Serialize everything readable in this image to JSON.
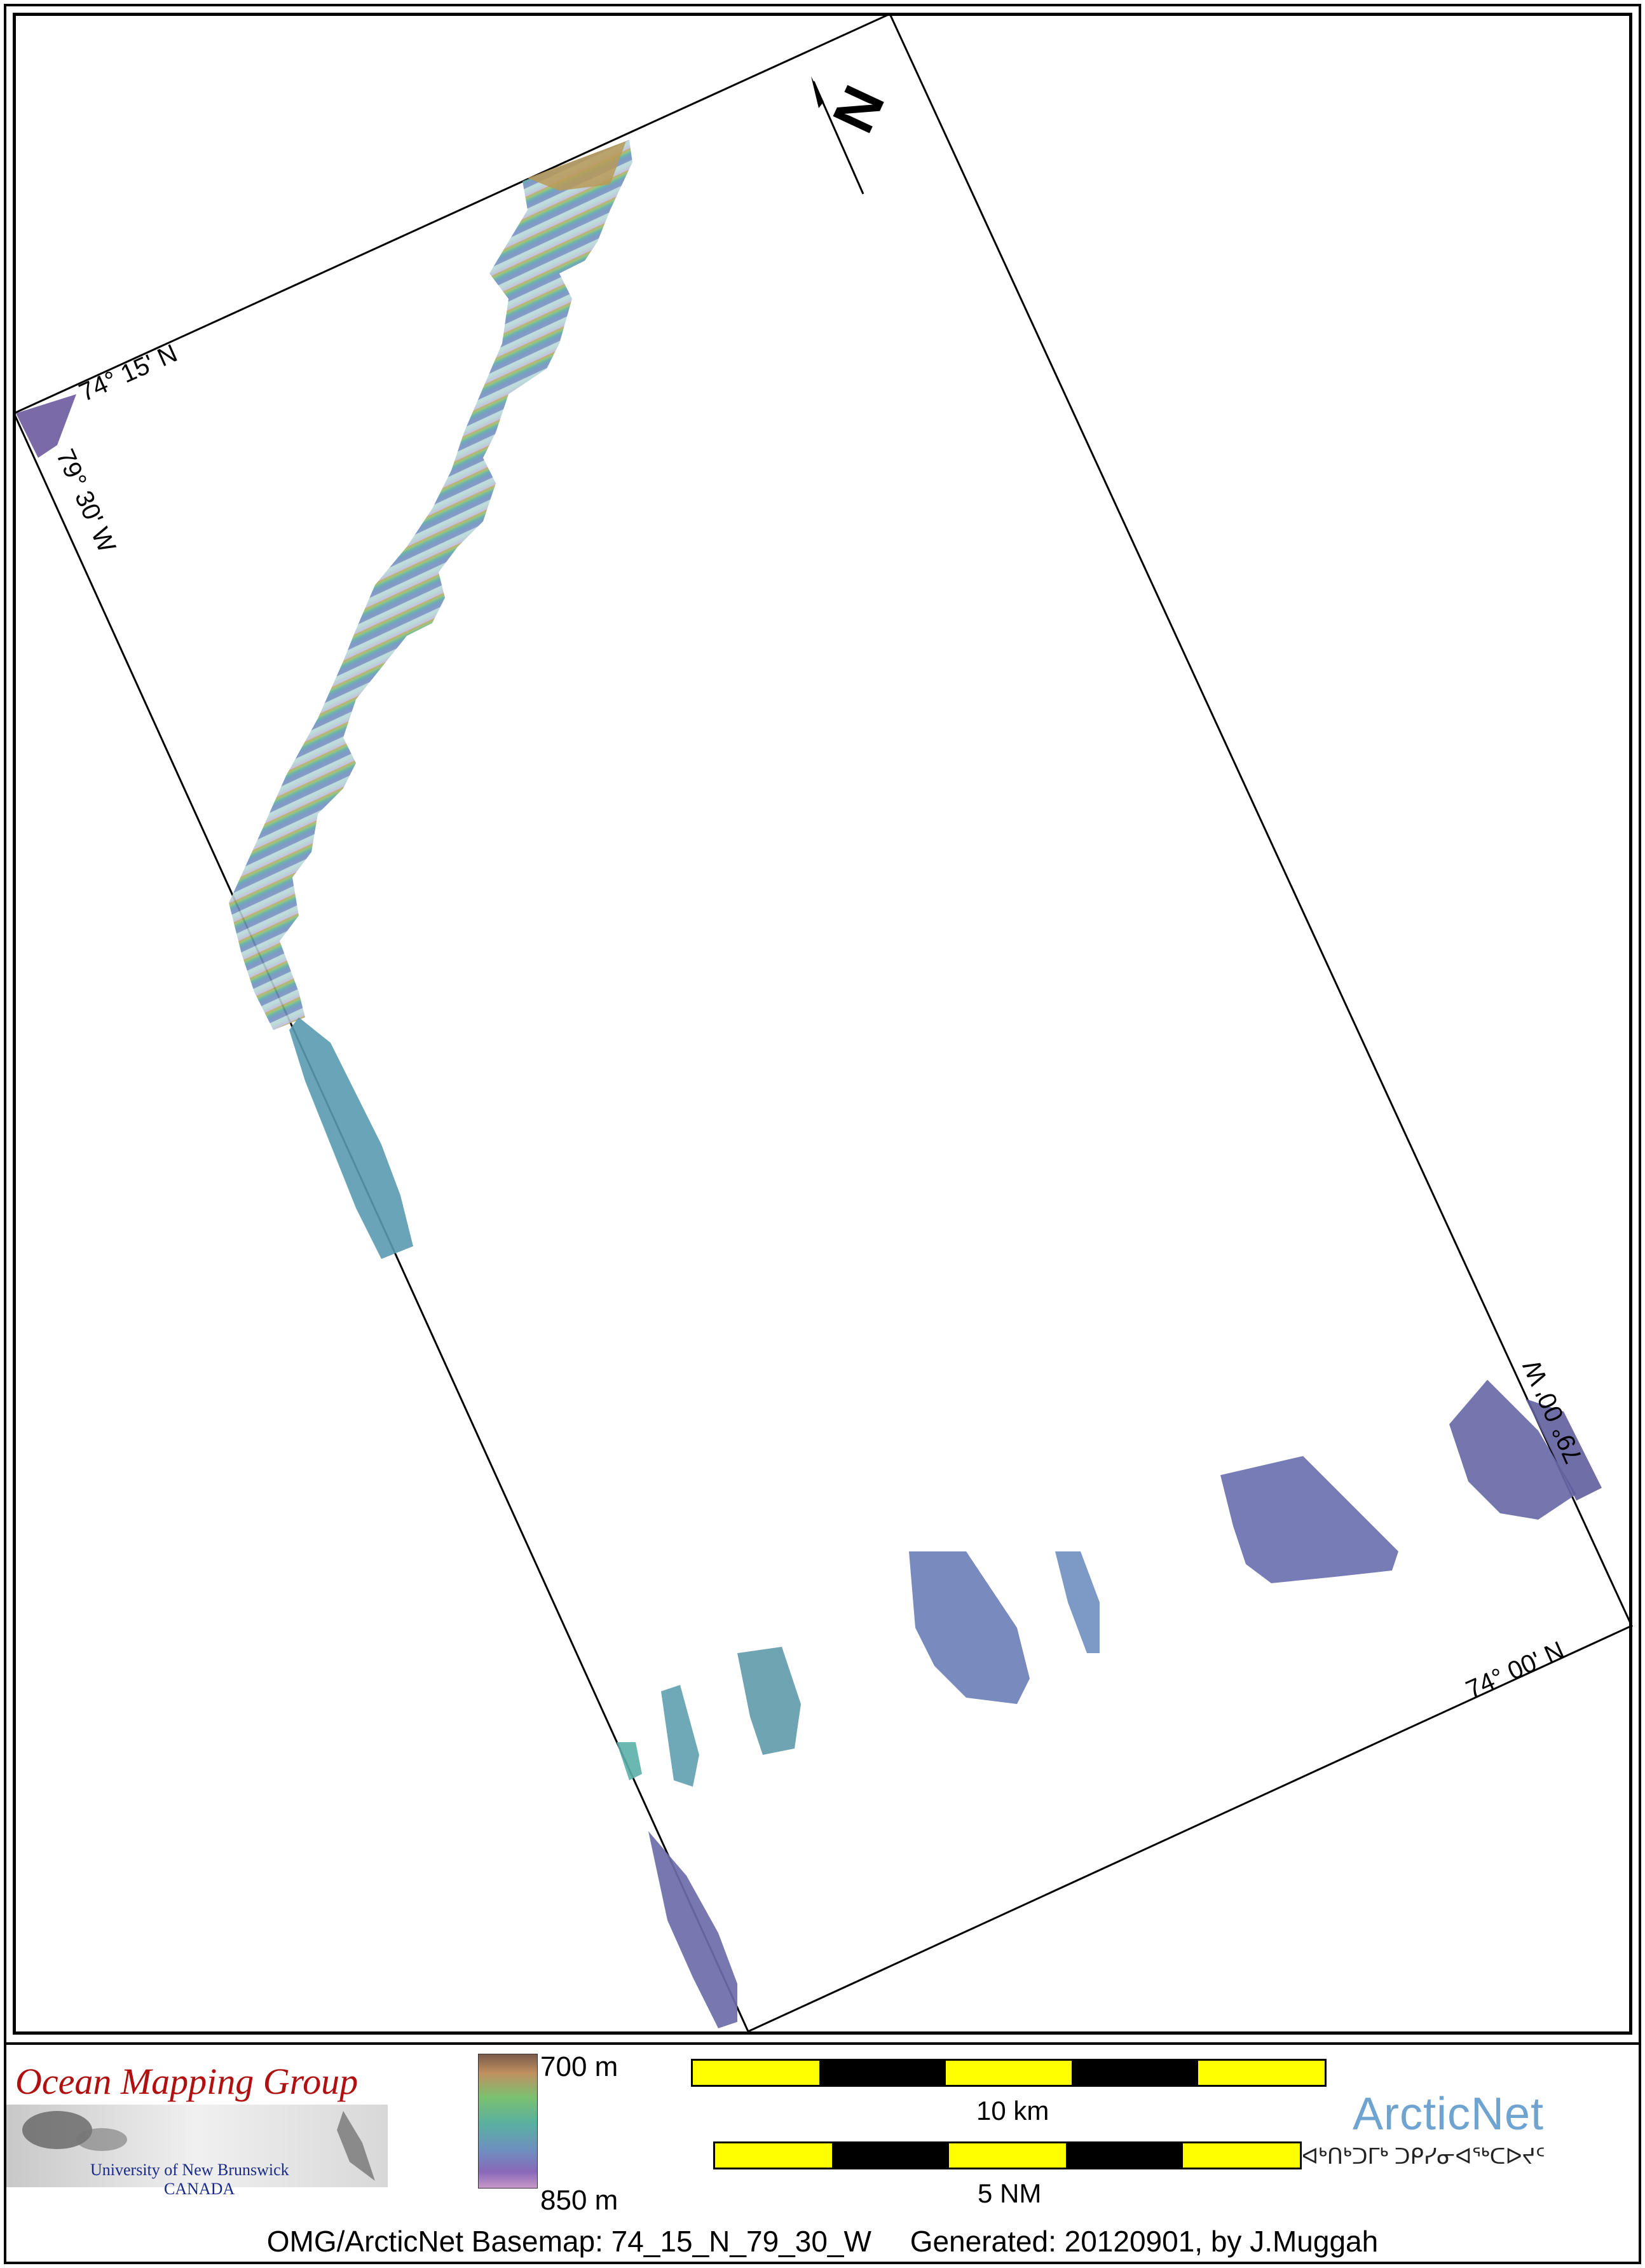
{
  "map": {
    "graticule_labels": {
      "lat_north": "74° 15' N",
      "lon_west": "79° 30' W",
      "lon_east": "79° 00' W",
      "lat_south": "74° 00' N"
    },
    "north_arrow_label": "N",
    "depth_palette": {
      "shallow": "#c8a060",
      "mid_shallow": "#7cc070",
      "mid": "#5ab0a0",
      "mid_deep": "#6f8fc0",
      "deep": "#7868a8"
    }
  },
  "legend": {
    "organization": {
      "title": "Ocean Mapping Group",
      "university": "University of New Brunswick",
      "country": "CANADA"
    },
    "depth_scale": {
      "top_label": "700 m",
      "bottom_label": "850 m"
    },
    "scale_bars": {
      "km_label": "10 km",
      "nm_label": "5 NM",
      "colors": {
        "fill": "#ffff00",
        "alt": "#000000"
      }
    },
    "partner": {
      "name": "ArcticNet",
      "syllabics": "ᐊᒃᑎᒃᑐᒥᒃ ᑐᑭᓯᓂᐊᖅᑕᐅᔪᑦ"
    }
  },
  "footer": {
    "basemap": "OMG/ArcticNet Basemap: 74_15_N_79_30_W",
    "generated": "Generated: 20120901, by J.Muggah"
  }
}
